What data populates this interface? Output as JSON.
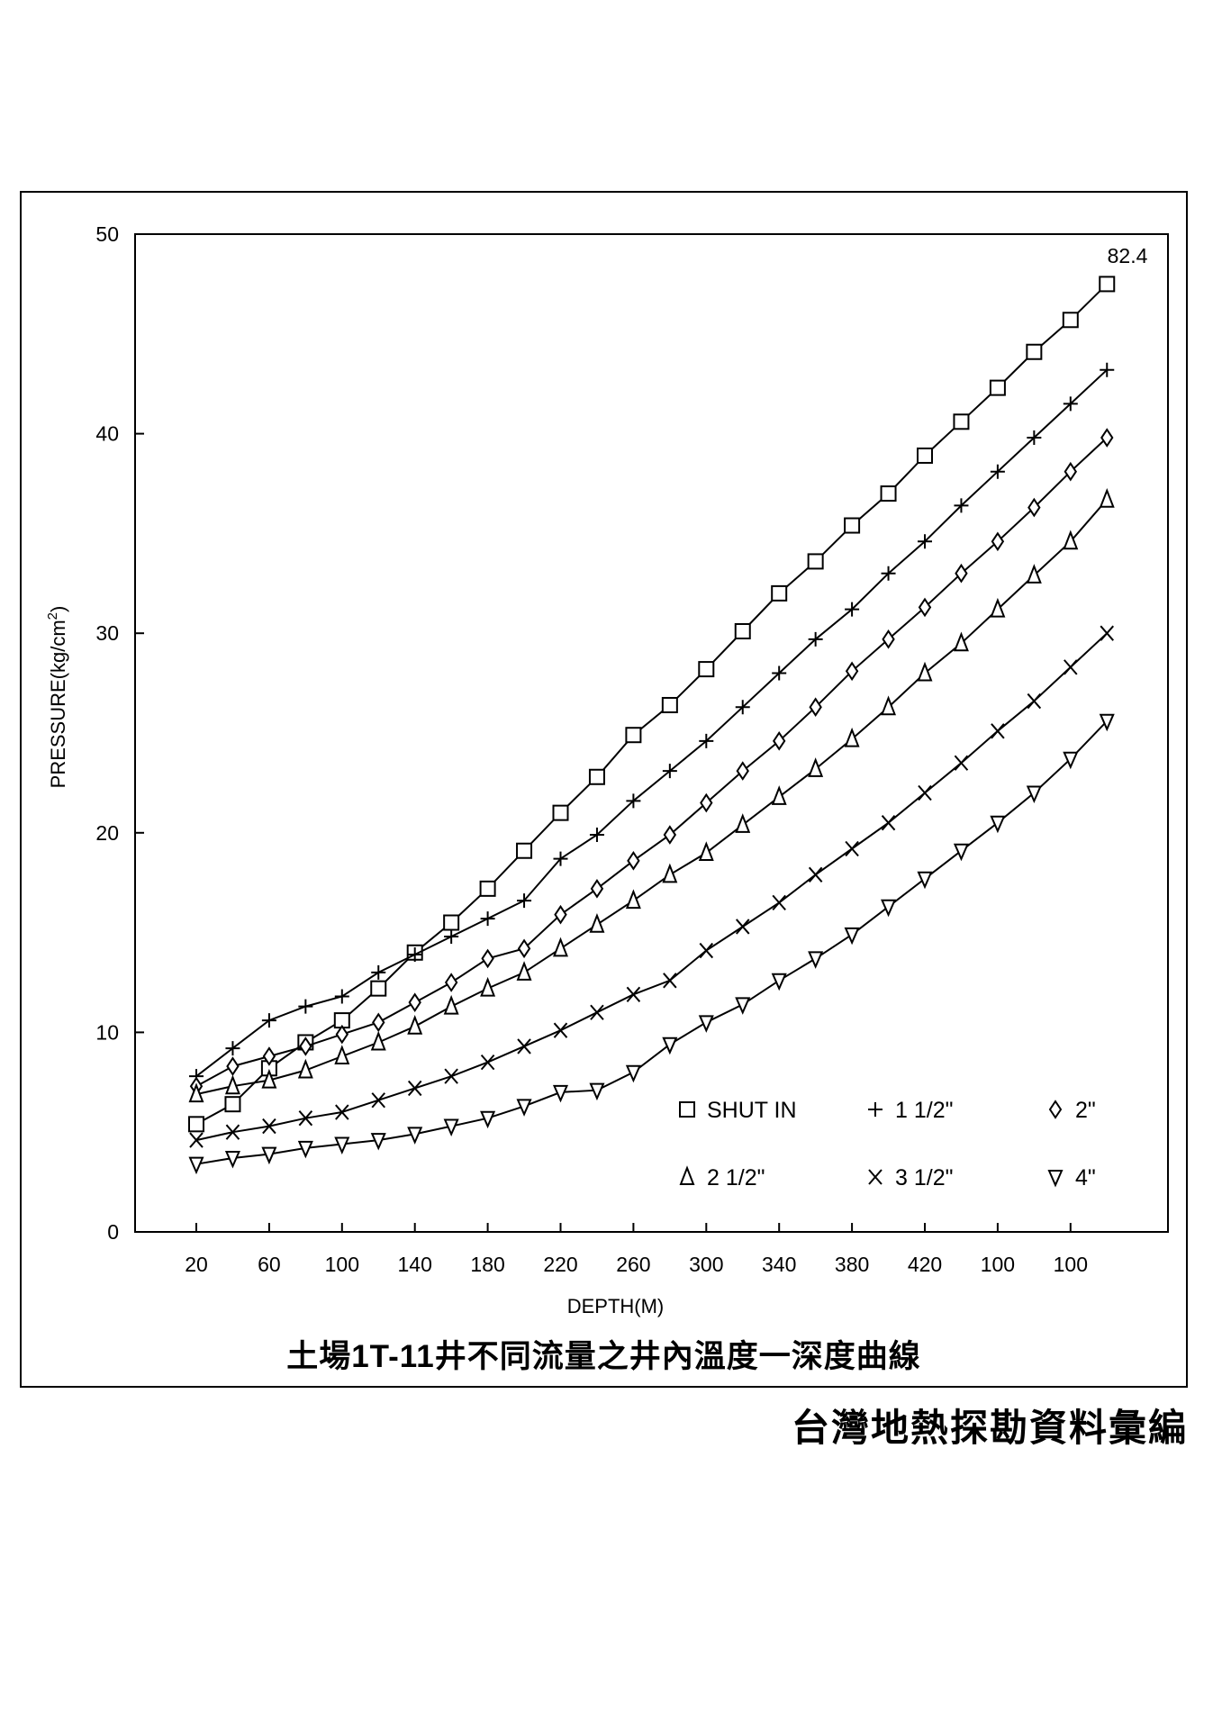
{
  "chart_data": {
    "type": "line",
    "title": "土場1T-11井不同流量之井內溫度一深度曲線",
    "xlabel": "DEPTH(M)",
    "ylabel": "PRESSURE(kg/cm2)",
    "ylabel_main": "PRESSURE(kg/cm",
    "ylabel_sup": "2",
    "ylabel_end": ")",
    "ylim": [
      0,
      50
    ],
    "yticks": [
      "0",
      "10",
      "20",
      "30",
      "40",
      "50"
    ],
    "xtick_labels": [
      "20",
      "60",
      "100",
      "140",
      "180",
      "220",
      "260",
      "300",
      "340",
      "380",
      "420",
      "100",
      "100"
    ],
    "x": [
      20,
      40,
      60,
      80,
      100,
      120,
      140,
      160,
      180,
      200,
      220,
      240,
      260,
      280,
      300,
      320,
      340,
      360,
      380,
      400,
      420,
      440,
      460,
      480,
      500,
      520
    ],
    "annotation": "82.4",
    "grid": false,
    "legend_placement": "bottom-right",
    "series": [
      {
        "name": "SHUT IN",
        "marker": "square",
        "values": [
          5.4,
          6.4,
          8.2,
          9.5,
          10.6,
          12.2,
          14.0,
          15.5,
          17.2,
          19.1,
          21.0,
          22.8,
          24.9,
          26.4,
          28.2,
          30.1,
          32.0,
          33.6,
          35.4,
          37.0,
          38.9,
          40.6,
          42.3,
          44.1,
          45.7,
          47.5
        ]
      },
      {
        "name": "1 1/2\"",
        "marker": "plus",
        "values": [
          7.8,
          9.2,
          10.6,
          11.3,
          11.8,
          13.0,
          13.9,
          14.8,
          15.7,
          16.6,
          18.7,
          19.9,
          21.6,
          23.1,
          24.6,
          26.3,
          28.0,
          29.7,
          31.2,
          33.0,
          34.6,
          36.4,
          38.1,
          39.8,
          41.5,
          43.2
        ]
      },
      {
        "name": "2\"",
        "marker": "diamond",
        "values": [
          7.3,
          8.3,
          8.8,
          9.3,
          9.9,
          10.5,
          11.5,
          12.5,
          13.7,
          14.2,
          15.9,
          17.2,
          18.6,
          19.9,
          21.5,
          23.1,
          24.6,
          26.3,
          28.1,
          29.7,
          31.3,
          33.0,
          34.6,
          36.3,
          38.1,
          39.8
        ]
      },
      {
        "name": "2 1/2\"",
        "marker": "triangle-up",
        "values": [
          6.9,
          7.3,
          7.6,
          8.1,
          8.8,
          9.5,
          10.3,
          11.3,
          12.2,
          13.0,
          14.2,
          15.4,
          16.6,
          17.9,
          19.0,
          20.4,
          21.8,
          23.2,
          24.7,
          26.3,
          28.0,
          29.5,
          31.2,
          32.9,
          34.6,
          36.7
        ]
      },
      {
        "name": "3 1/2\"",
        "marker": "x",
        "values": [
          4.6,
          5.0,
          5.3,
          5.7,
          6.0,
          6.6,
          7.2,
          7.8,
          8.5,
          9.3,
          10.1,
          11.0,
          11.9,
          12.6,
          14.1,
          15.3,
          16.5,
          17.9,
          19.2,
          20.5,
          22.0,
          23.5,
          25.1,
          26.6,
          28.3,
          30.0
        ]
      },
      {
        "name": "4\"",
        "marker": "triangle-down",
        "values": [
          3.4,
          3.7,
          3.9,
          4.2,
          4.4,
          4.6,
          4.9,
          5.3,
          5.7,
          6.3,
          7.0,
          7.1,
          8.0,
          9.4,
          10.5,
          11.4,
          12.6,
          13.7,
          14.9,
          16.3,
          17.7,
          19.1,
          20.5,
          22.0,
          23.7,
          25.6
        ]
      }
    ]
  },
  "footer": {
    "caption": "台灣地熱探勘資料彙編"
  }
}
